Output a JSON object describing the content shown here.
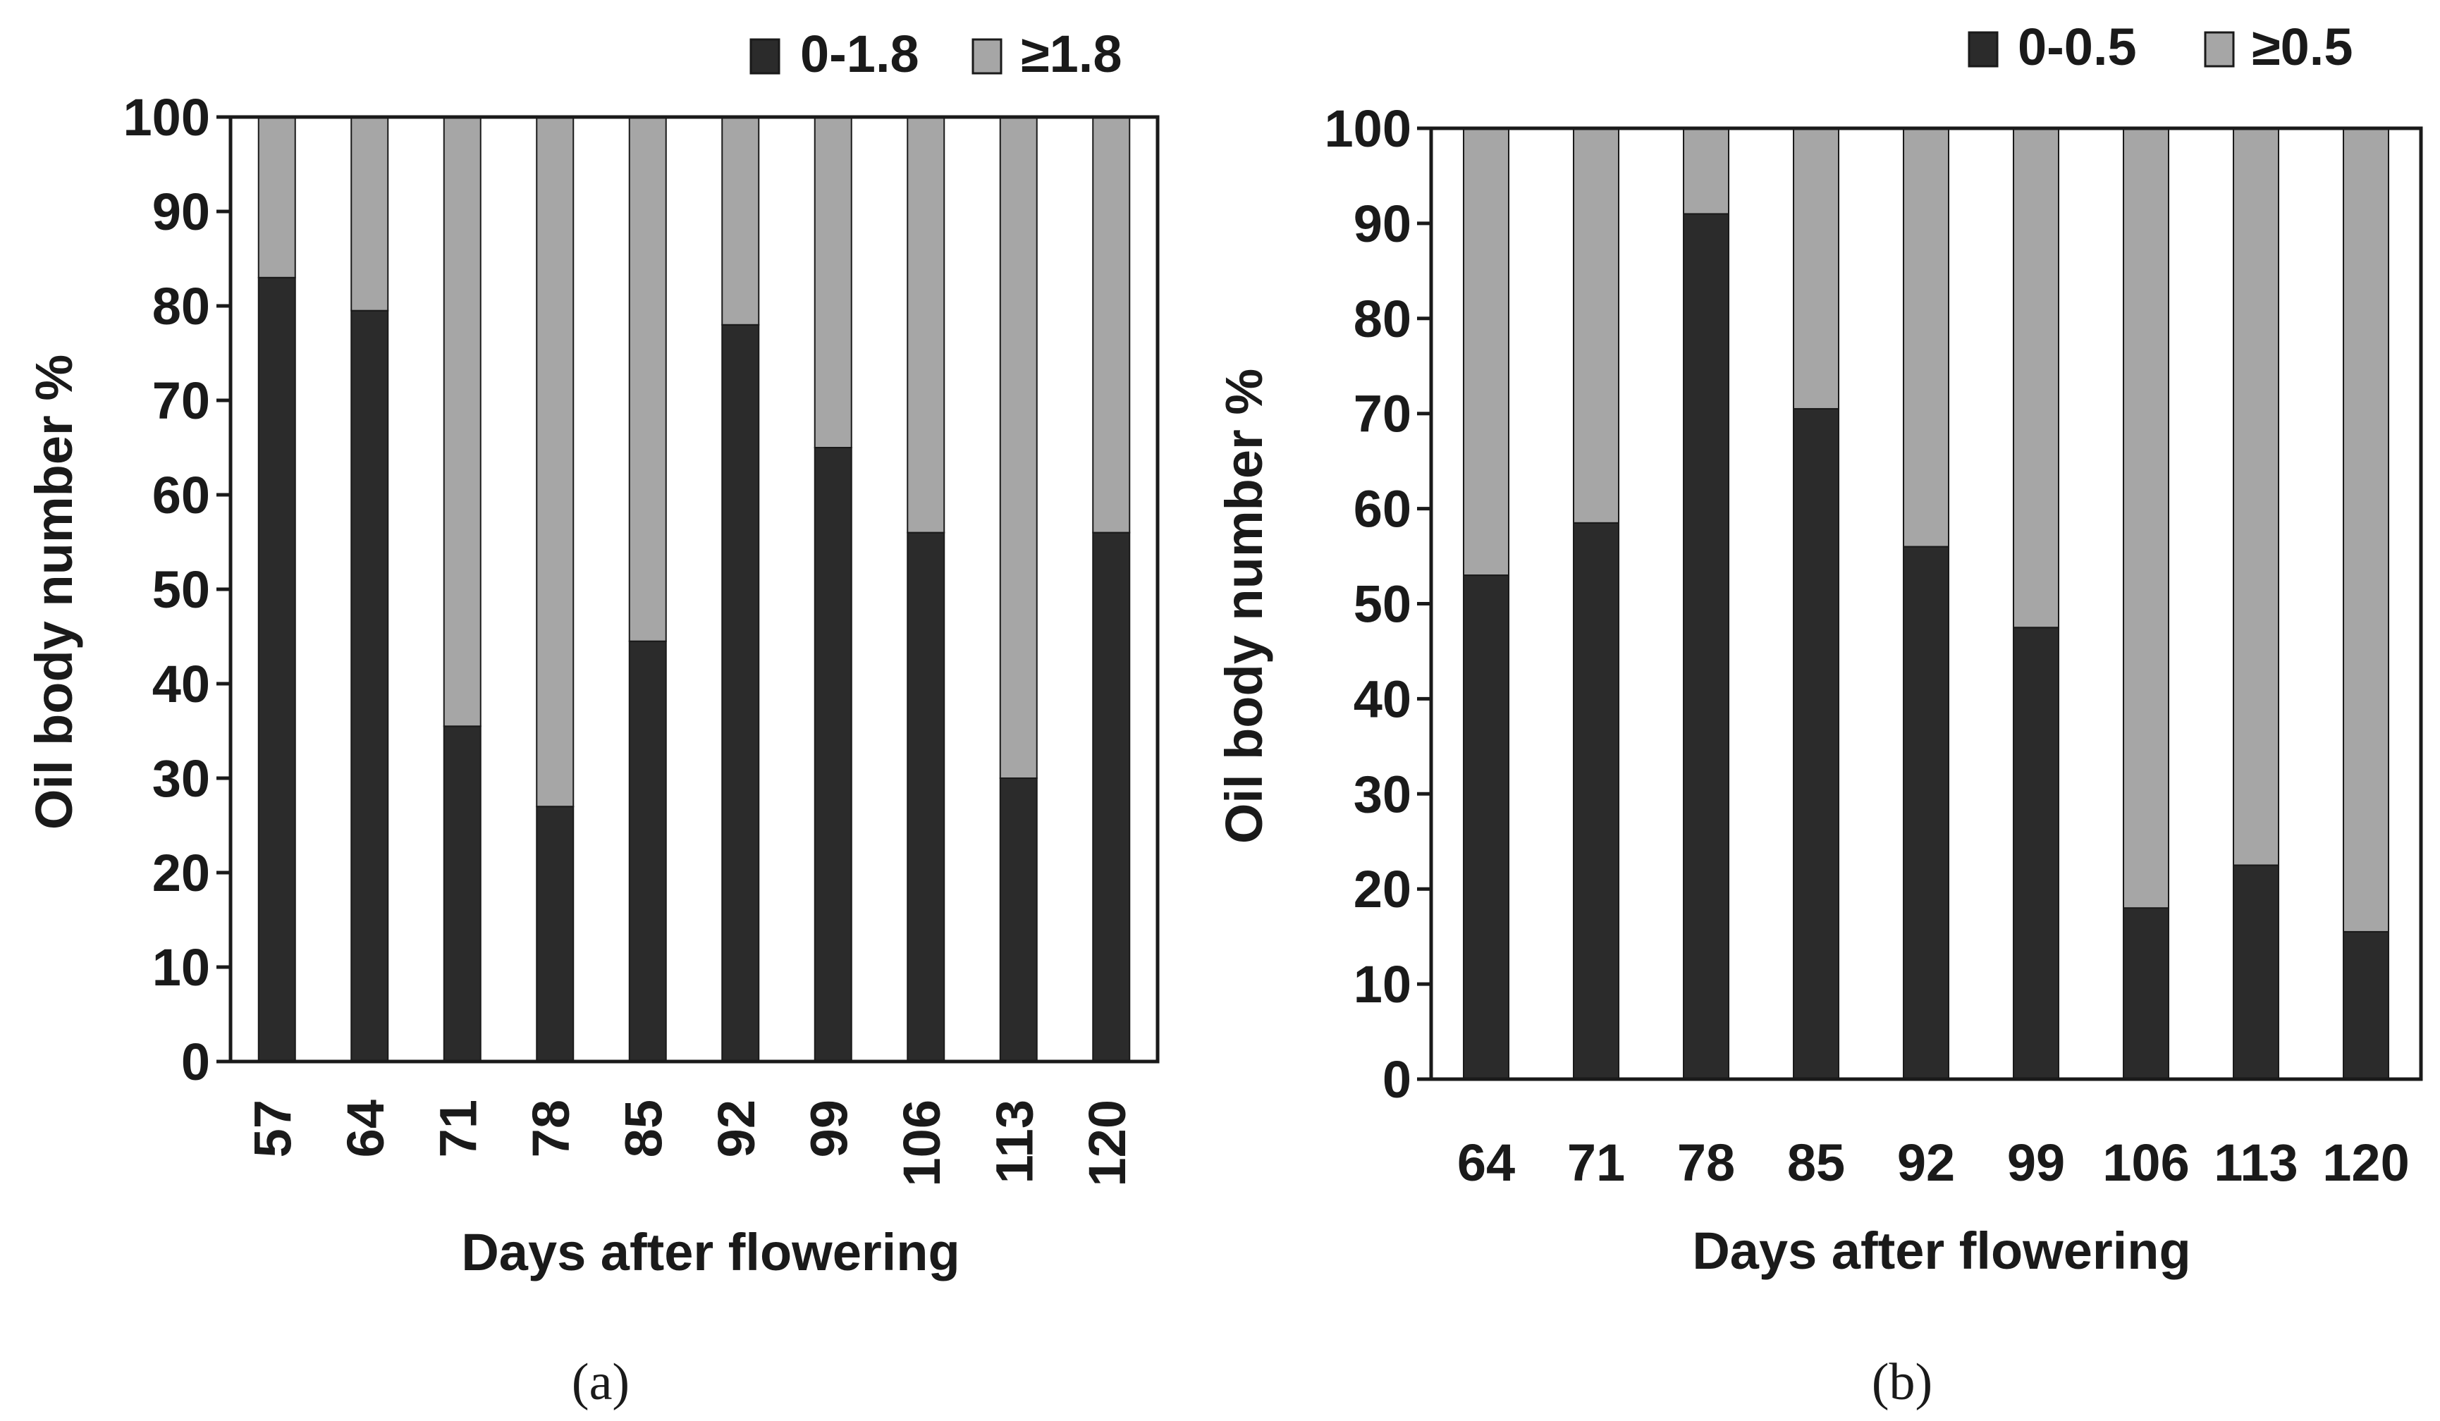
{
  "chart_data": [
    {
      "type": "bar",
      "stacked": true,
      "panel_label": "(a)",
      "xlabel": "Days after flowering",
      "ylabel": "Oil body number %",
      "ylim": [
        0,
        100
      ],
      "yticks": [
        0,
        10,
        20,
        30,
        40,
        50,
        60,
        70,
        80,
        90,
        100
      ],
      "categories": [
        "57",
        "64",
        "71",
        "78",
        "85",
        "92",
        "99",
        "106",
        "113",
        "120"
      ],
      "x_tick_rotation": "vertical",
      "legend_position": "top-right",
      "series": [
        {
          "name": "0-1.8",
          "color": "#2b2b2b",
          "values": [
            83,
            79.5,
            35.5,
            27,
            44.5,
            78,
            65,
            56,
            30,
            56
          ]
        },
        {
          "name": "≥1.8",
          "color": "#a6a6a6",
          "values": [
            17,
            20.5,
            64.5,
            73,
            55.5,
            22,
            35,
            44,
            70,
            44
          ]
        }
      ]
    },
    {
      "type": "bar",
      "stacked": true,
      "panel_label": "(b)",
      "xlabel": "Days after flowering",
      "ylabel": "Oil body number %",
      "ylim": [
        0,
        100
      ],
      "yticks": [
        0,
        10,
        20,
        30,
        40,
        50,
        60,
        70,
        80,
        90,
        100
      ],
      "categories": [
        "64",
        "71",
        "78",
        "85",
        "92",
        "99",
        "106",
        "113",
        "120"
      ],
      "x_tick_rotation": "horizontal",
      "legend_position": "top-right",
      "series": [
        {
          "name": "0-0.5",
          "color": "#2b2b2b",
          "values": [
            53,
            58.5,
            91,
            70.5,
            56,
            47.5,
            18,
            22.5,
            15.5
          ]
        },
        {
          "name": "≥0.5",
          "color": "#a6a6a6",
          "values": [
            47,
            41.5,
            9,
            29.5,
            44,
            52.5,
            82,
            77.5,
            84.5
          ]
        }
      ]
    }
  ]
}
